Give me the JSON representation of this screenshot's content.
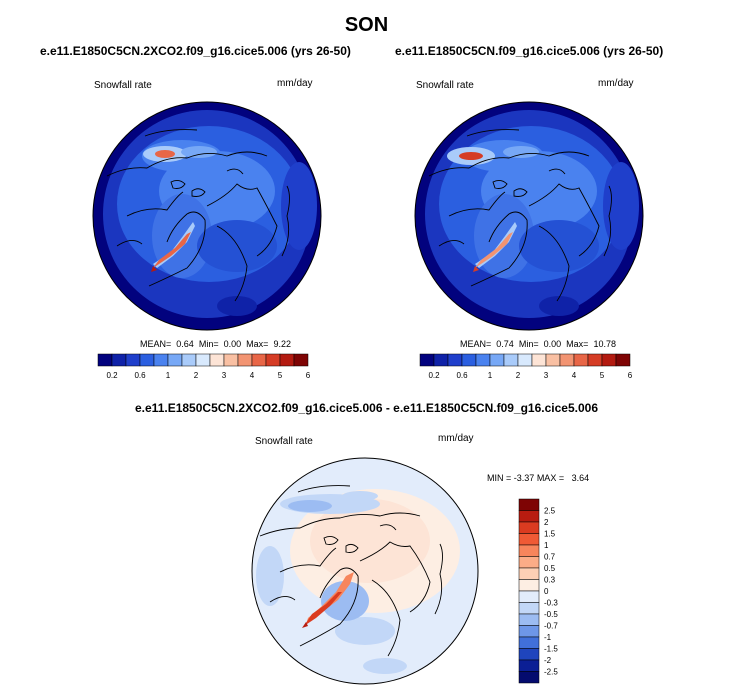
{
  "title": "SON",
  "panels": [
    {
      "case_title": "e.e11.E1850C5CN.2XCO2.f09_g16.cice5.006 (yrs 26-50)",
      "variable": "Snowfall rate",
      "units": "mm/day",
      "stats": {
        "mean_label": "MEAN=",
        "mean": "0.64",
        "min_label": "Min=",
        "min": "0.00",
        "max_label": "Max=",
        "max": "9.22"
      }
    },
    {
      "case_title": "e.e11.E1850C5CN.f09_g16.cice5.006 (yrs 26-50)",
      "variable": "Snowfall rate",
      "units": "mm/day",
      "stats": {
        "mean_label": "MEAN=",
        "mean": "0.74",
        "min_label": "Min=",
        "min": "0.00",
        "max_label": "Max=",
        "max": "10.78"
      }
    }
  ],
  "abs_colorbar": {
    "colors": [
      "#02027e",
      "#0f22a8",
      "#1f3fcb",
      "#2b5fe0",
      "#4a82ef",
      "#77a8f6",
      "#a9cbfa",
      "#d8e9fd",
      "#fde4d6",
      "#f9c0a3",
      "#f29472",
      "#e86647",
      "#d53c25",
      "#b31a10",
      "#7e0404"
    ],
    "tick_labels": [
      "0.2",
      "0.6",
      "1",
      "2",
      "3",
      "4",
      "5",
      "6"
    ]
  },
  "diff_panel": {
    "title": "e.e11.E1850C5CN.2XCO2.f09_g16.cice5.006 - e.e11.E1850C5CN.f09_g16.cice5.006",
    "variable": "Snowfall rate",
    "units": "mm/day",
    "stats": {
      "min_label": "MIN =",
      "min": "-3.37",
      "max_label": "MAX =",
      "max": "3.64"
    }
  },
  "diff_colorbar": {
    "labels": [
      "2.5",
      "2",
      "1.5",
      "1",
      "0.7",
      "0.5",
      "0.3",
      "0",
      "-0.3",
      "-0.5",
      "-0.7",
      "-1",
      "-1.5",
      "-2",
      "-2.5"
    ],
    "colors": [
      "#7e0404",
      "#b81c10",
      "#db3b20",
      "#ef5a35",
      "#f7855c",
      "#fbac87",
      "#fdd0b5",
      "#fdeee3",
      "#e2ecfb",
      "#c2d7f7",
      "#9cbcf2",
      "#6e97e8",
      "#4170da",
      "#1f45bd",
      "#0b1f95",
      "#040b6e"
    ]
  }
}
